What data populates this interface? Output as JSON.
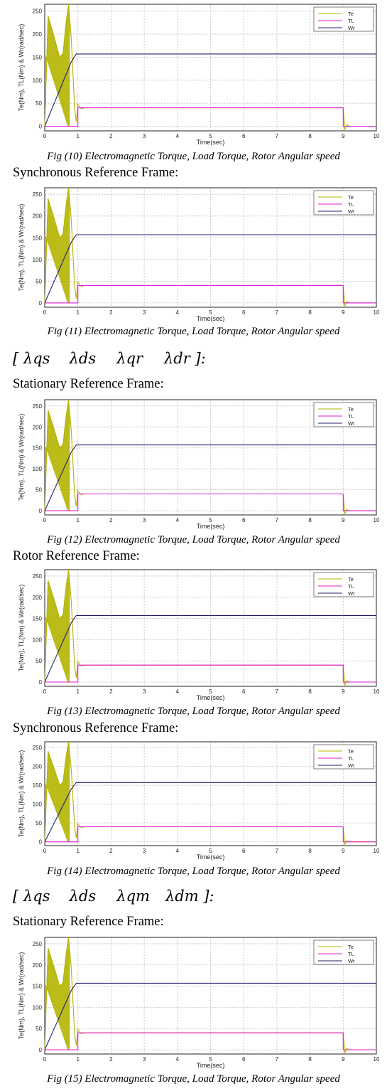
{
  "figures": [
    {
      "id": "fig10",
      "caption": "Fig (10) Electromagnetic Torque, Load Torque, Rotor Angular speed"
    },
    {
      "id": "fig11",
      "caption": "Fig (11) Electromagnetic Torque, Load Torque, Rotor Angular speed"
    },
    {
      "id": "fig12",
      "caption": "Fig (12) Electromagnetic Torque, Load Torque, Rotor Angular speed"
    },
    {
      "id": "fig13",
      "caption": "Fig (13) Electromagnetic Torque, Load Torque, Rotor Angular speed"
    },
    {
      "id": "fig14",
      "caption": "Fig (14) Electromagnetic Torque, Load Torque, Rotor Angular speed"
    },
    {
      "id": "fig15",
      "caption": "Fig (15) Electromagnetic Torque, Load Torque, Rotor Angular speed"
    }
  ],
  "headings": {
    "h1": "Synchronous Reference Frame:",
    "h2": "Stationary Reference Frame:",
    "h3": "Rotor Reference Frame:",
    "h4": "Synchronous Reference Frame:",
    "h5": "Stationary Reference Frame:"
  },
  "vectors": {
    "v1": {
      "open": "[",
      "items": [
        "λqs",
        "λds",
        "λqr",
        "λdr"
      ],
      "close": "]:"
    },
    "v2": {
      "open": "[",
      "items": [
        "λqs",
        "λds",
        "λqm",
        "λdm"
      ],
      "close": "]:"
    }
  },
  "colors": {
    "Te": "#b4b400",
    "TL": "#e01cd6",
    "Wr": "#20206e",
    "grid": "#bdbdbd"
  },
  "chart_data": [
    {
      "type": "line",
      "title": "",
      "xlabel": "Time(sec)",
      "ylabel": "Te(Nm), TL(Nm) & Wr(rad/sec)",
      "xlim": [
        0,
        10
      ],
      "ylim": [
        -10,
        265
      ],
      "xticks": [
        0,
        1,
        2,
        3,
        4,
        5,
        6,
        7,
        8,
        9,
        10
      ],
      "yticks": [
        0,
        50,
        100,
        150,
        200,
        250
      ],
      "grid": true,
      "legend": "top-right",
      "series": [
        {
          "name": "Te",
          "x": [
            0,
            0.1,
            0.3,
            0.45,
            0.55,
            0.65,
            0.72,
            0.8,
            0.9,
            0.95,
            1.0,
            1.05,
            1.1,
            1.2,
            9.0,
            9.05,
            9.1,
            9.2,
            10
          ],
          "y": [
            0,
            240,
            190,
            150,
            158,
            230,
            265,
            190,
            40,
            10,
            48,
            42,
            38,
            40,
            40,
            -8,
            3,
            0,
            0
          ]
        },
        {
          "name": "TL",
          "x": [
            0,
            1.0,
            1.0,
            9.0,
            9.0,
            10
          ],
          "y": [
            0,
            0,
            40,
            40,
            0,
            0
          ]
        },
        {
          "name": "Wr",
          "x": [
            0,
            0.2,
            0.4,
            0.6,
            0.8,
            0.95,
            1.05,
            9,
            10
          ],
          "y": [
            0,
            35,
            70,
            105,
            140,
            157,
            157,
            157,
            157
          ]
        }
      ]
    }
  ]
}
